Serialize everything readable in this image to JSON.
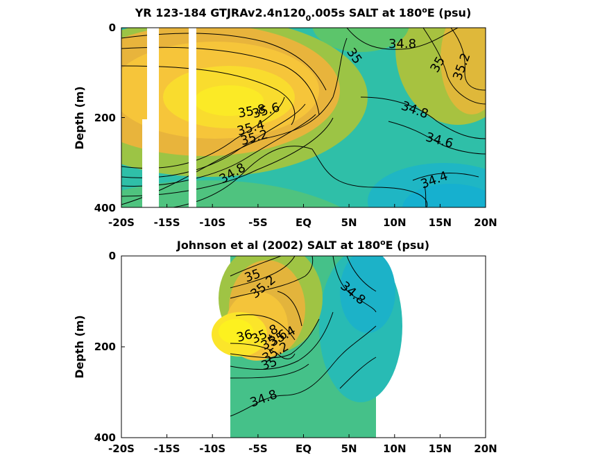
{
  "figure": {
    "colormap": "parula-like (blue-green-yellow)",
    "panel_background": "#ffffff"
  },
  "chart_data": [
    {
      "type": "contour",
      "title_main": "YR 123-184 GTJRAv2.4n120",
      "title_sub": "0",
      "title_rest": ".005s SALT at 180",
      "title_sup": "o",
      "title_end": "E (psu)",
      "ylabel": "Depth (m)",
      "xlim": [
        -20,
        20
      ],
      "ylim": [
        400,
        0
      ],
      "x_ticks": [
        -20,
        -15,
        -10,
        -5,
        0,
        5,
        10,
        15,
        20
      ],
      "x_tick_labels": [
        "-20S",
        "-15S",
        "-10S",
        "-5S",
        "EQ",
        "5N",
        "10N",
        "15N",
        "20N"
      ],
      "y_ticks": [
        0,
        200,
        400
      ],
      "y_tick_labels": [
        "0",
        "200",
        "400"
      ],
      "missing_data_columns": [
        [
          -17.5,
          -16.3,
          200,
          400
        ],
        [
          -16.3,
          -15.6,
          0,
          400
        ],
        [
          -12.3,
          -11.6,
          0,
          400
        ]
      ],
      "contour_labels": [
        {
          "text": "34.8",
          "x": 10.8,
          "y": 15
        },
        {
          "text": "35",
          "x": 5.3,
          "y": 60
        },
        {
          "text": "35",
          "x": 14.8,
          "y": 75
        },
        {
          "text": "35.2",
          "x": 17.3,
          "y": 80
        },
        {
          "text": "35.8",
          "x": -5.4,
          "y": 170
        },
        {
          "text": "35.6",
          "x": -3.9,
          "y": 180
        },
        {
          "text": "35.4",
          "x": -5.3,
          "y": 205
        },
        {
          "text": "35.2",
          "x": -5.1,
          "y": 225
        },
        {
          "text": "34.8",
          "x": 11.7,
          "y": 165
        },
        {
          "text": "34.6",
          "x": 14.8,
          "y": 230
        },
        {
          "text": "34.8",
          "x": -7.5,
          "y": 300
        },
        {
          "text": "34.4",
          "x": 15.2,
          "y": 345
        }
      ]
    },
    {
      "type": "contour",
      "title_main": "Johnson et al (2002) SALT at 180",
      "title_sup": "o",
      "title_end": "E (psu)",
      "ylabel": "Depth (m)",
      "xlim": [
        -20,
        20
      ],
      "ylim": [
        400,
        0
      ],
      "x_ticks": [
        -20,
        -15,
        -10,
        -5,
        0,
        5,
        10,
        15,
        20
      ],
      "x_tick_labels": [
        "-20S",
        "-15S",
        "-10S",
        "-5S",
        "EQ",
        "5N",
        "10N",
        "15N",
        "20N"
      ],
      "y_ticks": [
        0,
        200,
        400
      ],
      "y_tick_labels": [
        "0",
        "200",
        "400"
      ],
      "data_xrange": [
        -8,
        8
      ],
      "contour_labels": [
        {
          "text": "35",
          "x": -5.4,
          "y": 40
        },
        {
          "text": "35.2",
          "x": -4.1,
          "y": 70
        },
        {
          "text": "34.8",
          "x": 5.2,
          "y": 90
        },
        {
          "text": "36",
          "x": -6.1,
          "y": 170
        },
        {
          "text": "35.8",
          "x": -4.7,
          "y": 180
        },
        {
          "text": "35.6",
          "x": -4.0,
          "y": 190
        },
        {
          "text": "35.4",
          "x": -2.8,
          "y": 195
        },
        {
          "text": "35.2",
          "x": -3.7,
          "y": 215
        },
        {
          "text": "35",
          "x": -4.8,
          "y": 235
        },
        {
          "text": "34.8",
          "x": -5.5,
          "y": 320
        }
      ]
    }
  ]
}
